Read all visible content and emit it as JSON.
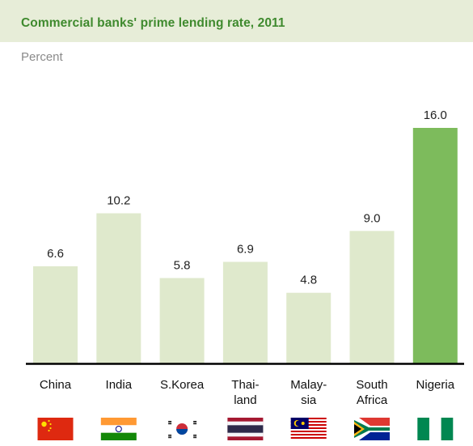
{
  "chart_data": {
    "type": "bar",
    "title": "Commercial banks' prime lending rate, 2011",
    "unit": "Percent",
    "categories": [
      [
        "China"
      ],
      [
        "India"
      ],
      [
        "S.Korea"
      ],
      [
        "Thai-",
        "land"
      ],
      [
        "Malay-",
        "sia"
      ],
      [
        "South",
        "Africa"
      ],
      [
        "Nigeria"
      ]
    ],
    "flags": [
      "china-flag-icon",
      "india-flag-icon",
      "south-korea-flag-icon",
      "thailand-flag-icon",
      "malaysia-flag-icon",
      "south-africa-flag-icon",
      "nigeria-flag-icon"
    ],
    "values": [
      6.6,
      10.2,
      5.8,
      6.9,
      4.8,
      9.0,
      16.0
    ],
    "value_labels": [
      "6.6",
      "10.2",
      "5.8",
      "6.9",
      "4.8",
      "9.0",
      "16.0"
    ],
    "highlight_index": 6,
    "colors": {
      "bar": "#dfe9cc",
      "highlight": "#7dbb5c",
      "title": "#3f8a2e",
      "title_bg": "#e7edd8",
      "axis": "#000000"
    },
    "ylim": [
      0,
      16.0
    ],
    "grid": false
  }
}
